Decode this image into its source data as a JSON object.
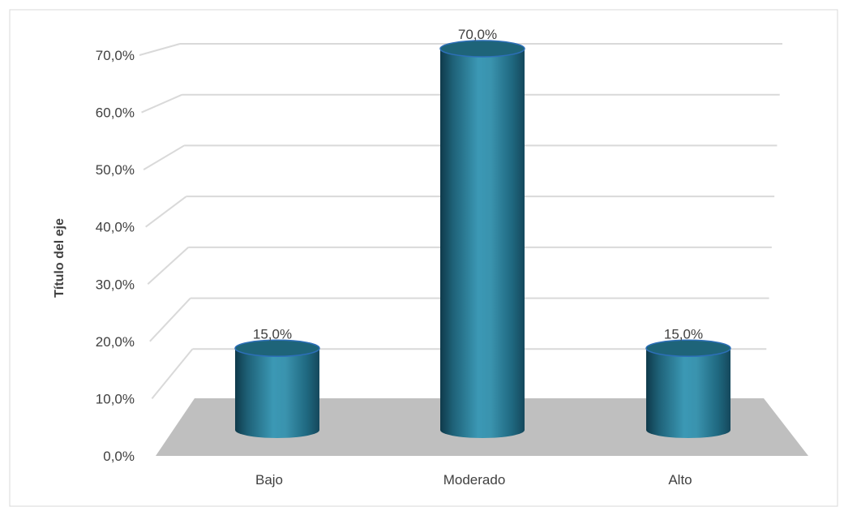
{
  "chart_data": {
    "type": "bar",
    "style": "3d-cylinder",
    "categories": [
      "Bajo",
      "Moderado",
      "Alto"
    ],
    "values": [
      15.0,
      70.0,
      15.0
    ],
    "data_labels": [
      "15,0%",
      "70,0%",
      "15,0%"
    ],
    "ylabel": "Título del eje",
    "ylim": [
      0,
      70
    ],
    "yticks": [
      0,
      10,
      20,
      30,
      40,
      50,
      60,
      70
    ],
    "ytick_labels": [
      "0,0%",
      "10,0%",
      "20,0%",
      "30,0%",
      "40,0%",
      "50,0%",
      "60,0%",
      "70,0%"
    ],
    "grid": true,
    "legend": "none",
    "colors": {
      "bar": "#2f7f9a",
      "bar_dark": "#154a5e",
      "bar_light": "#3f9ab6",
      "bar_top": "#1e6479",
      "bar_edge": "#2d6fb8",
      "floor": "#bfbfbf",
      "grid": "#d9d9d9",
      "text": "#404040",
      "border": "#d9d9d9"
    }
  }
}
